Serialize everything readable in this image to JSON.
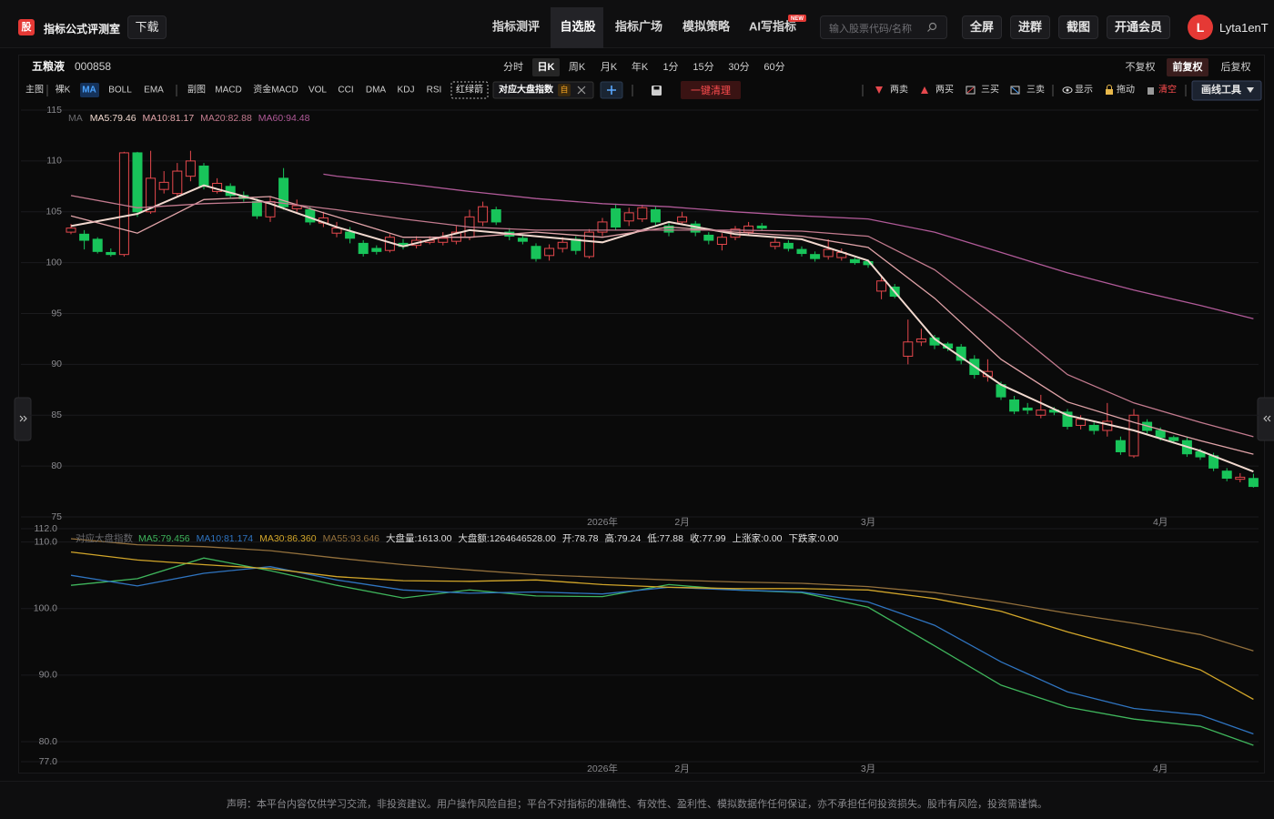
{
  "header": {
    "logo": "股",
    "title": "指标公式评测室",
    "download": "下载",
    "nav": [
      "指标测评",
      "自选股",
      "指标广场",
      "模拟策略",
      "AI写指标"
    ],
    "badge": "NEW",
    "search_placeholder": "输入股票代码/名称",
    "buttons": [
      "全屏",
      "进群",
      "截图",
      "开通会员"
    ],
    "avatar": "L",
    "user": "Lyta1enT"
  },
  "toolbar": {
    "stock_name": "五粮液",
    "stock_code": "000858",
    "periods": [
      "分时",
      "日K",
      "周K",
      "月K",
      "年K",
      "1分",
      "15分",
      "30分",
      "60分"
    ],
    "adjust": [
      "不复权",
      "前复权",
      "后复权"
    ],
    "main_label": "主图",
    "main_items": [
      "裸K",
      "MA",
      "BOLL",
      "EMA"
    ],
    "sub_label": "副图",
    "sub_items": [
      "MACD",
      "资金MACD",
      "VOL",
      "CCI",
      "DMA",
      "KDJ",
      "RSI"
    ],
    "arrow_tag": "红绿箭",
    "index_tag": "对应大盘指数",
    "index_tag_badge": "自",
    "clear_all": "一键清理",
    "signals": [
      "两卖",
      "两买",
      "三买",
      "三卖"
    ],
    "view": [
      "显示",
      "拖动",
      "清空"
    ],
    "draw_tools": "画线工具"
  },
  "chart_data": [
    {
      "type": "candlestick",
      "legend_title": "MA",
      "categories": [
        null,
        null,
        null,
        null,
        null,
        null,
        null,
        null,
        null,
        null,
        null,
        null,
        null,
        null,
        null,
        null,
        null,
        null,
        null,
        null,
        null,
        null,
        null,
        null,
        null,
        null,
        null,
        null,
        null,
        null,
        null,
        null,
        null,
        null,
        null,
        null,
        null,
        null,
        null,
        null,
        "2026年",
        null,
        null,
        null,
        null,
        null,
        "2月",
        null,
        null,
        null,
        null,
        null,
        null,
        null,
        null,
        null,
        null,
        null,
        null,
        null,
        "3月",
        null,
        null,
        null,
        null,
        null,
        null,
        null,
        null,
        null,
        null,
        null,
        null,
        null,
        null,
        null,
        null,
        null,
        null,
        null,
        null,
        null,
        "4月",
        null,
        null,
        null,
        null,
        null,
        null,
        null
      ],
      "open": [
        103.0,
        102.8,
        102.3,
        101.0,
        100.8,
        110.8,
        105.0,
        107.2,
        106.8,
        108.5,
        109.5,
        107.0,
        107.5,
        106.6,
        106.0,
        104.5,
        108.3,
        105.3,
        105.2,
        103.9,
        102.9,
        103.0,
        101.9,
        101.4,
        101.2,
        101.9,
        101.7,
        102.0,
        102.0,
        102.1,
        102.5,
        104.0,
        105.2,
        103.0,
        102.4,
        101.6,
        100.7,
        101.4,
        102.3,
        100.6,
        103.0,
        105.3,
        104.1,
        104.3,
        105.2,
        103.6,
        104.0,
        103.8,
        102.7,
        101.8,
        102.5,
        103.0,
        103.6,
        101.6,
        101.9,
        101.3,
        100.8,
        100.6,
        100.5,
        100.3,
        100.1,
        97.2,
        97.6,
        90.8,
        92.2,
        92.6,
        92.0,
        91.7,
        90.5,
        88.8,
        88.0,
        86.5,
        85.7,
        85.0,
        85.5,
        85.3,
        84.0,
        84.0,
        83.5,
        82.5,
        81.0,
        84.3,
        83.5,
        82.8,
        82.5,
        81.4,
        81.0,
        79.5,
        78.7,
        78.78
      ],
      "high": [
        103.8,
        103.2,
        102.5,
        101.4,
        110.9,
        110.9,
        111.0,
        109.0,
        109.8,
        111.0,
        109.8,
        108.3,
        107.8,
        107.0,
        106.3,
        106.5,
        109.3,
        106.2,
        105.5,
        105.0,
        104.0,
        103.5,
        102.2,
        101.7,
        102.8,
        102.3,
        102.6,
        102.6,
        103.0,
        103.6,
        105.2,
        106.0,
        105.5,
        103.4,
        102.8,
        101.9,
        101.8,
        102.5,
        102.6,
        103.3,
        104.4,
        105.8,
        105.4,
        105.7,
        105.5,
        103.9,
        105.0,
        104.1,
        103.0,
        102.9,
        103.6,
        104.0,
        103.9,
        102.5,
        102.2,
        101.6,
        101.1,
        102.3,
        101.4,
        100.5,
        100.3,
        98.6,
        97.9,
        94.4,
        93.5,
        92.9,
        92.2,
        92.0,
        90.9,
        90.5,
        88.3,
        86.9,
        86.2,
        87.0,
        85.8,
        85.6,
        85.0,
        84.3,
        86.2,
        82.9,
        85.6,
        84.6,
        83.8,
        83.0,
        82.8,
        81.7,
        81.3,
        79.8,
        79.3,
        79.24
      ],
      "low": [
        102.8,
        101.3,
        100.9,
        100.6,
        100.6,
        104.5,
        104.8,
        106.8,
        106.5,
        108.0,
        107.2,
        106.8,
        106.3,
        106.0,
        104.3,
        104.0,
        105.2,
        105.0,
        103.7,
        103.5,
        102.5,
        101.9,
        100.6,
        100.8,
        101.0,
        101.3,
        101.4,
        101.8,
        101.7,
        101.8,
        102.2,
        103.6,
        103.7,
        102.2,
        101.8,
        100.1,
        100.2,
        101.0,
        100.8,
        100.4,
        102.6,
        103.2,
        103.6,
        104.0,
        103.6,
        102.6,
        103.7,
        102.6,
        101.8,
        101.2,
        102.2,
        102.7,
        103.1,
        101.3,
        101.1,
        100.6,
        100.1,
        100.3,
        100.2,
        99.8,
        99.5,
        96.4,
        96.5,
        90.0,
        91.8,
        91.5,
        91.3,
        90.0,
        88.6,
        88.3,
        86.5,
        85.1,
        85.1,
        84.7,
        85.0,
        83.6,
        83.6,
        83.1,
        82.9,
        81.1,
        80.8,
        83.2,
        82.5,
        82.2,
        80.9,
        80.6,
        79.5,
        78.5,
        78.4,
        77.88
      ],
      "close": [
        103.4,
        102.2,
        101.1,
        100.8,
        110.8,
        105.0,
        108.3,
        107.9,
        109.0,
        110.0,
        107.5,
        107.8,
        106.6,
        106.3,
        104.6,
        106.0,
        105.5,
        105.6,
        104.0,
        104.4,
        103.4,
        102.4,
        100.9,
        101.1,
        102.5,
        101.6,
        102.2,
        102.2,
        102.4,
        103.0,
        104.5,
        105.5,
        104.0,
        102.6,
        102.1,
        100.4,
        101.4,
        102.0,
        101.2,
        103.0,
        104.0,
        103.5,
        104.9,
        105.4,
        104.0,
        103.0,
        104.5,
        103.0,
        102.2,
        102.5,
        103.3,
        103.6,
        103.4,
        102.0,
        101.4,
        100.9,
        100.4,
        101.3,
        101.0,
        100.0,
        99.8,
        98.2,
        96.7,
        92.2,
        92.5,
        91.9,
        91.6,
        90.4,
        89.0,
        89.3,
        86.8,
        85.4,
        85.5,
        85.5,
        85.3,
        83.9,
        84.6,
        83.5,
        84.4,
        81.4,
        85.0,
        83.5,
        82.8,
        82.5,
        81.2,
        80.9,
        79.8,
        78.8,
        78.9,
        77.99
      ],
      "up_color": "#e5484d",
      "down_color": "#18c45a",
      "ylim": [
        75,
        115
      ],
      "yticks": [
        75,
        80,
        85,
        90,
        95,
        100,
        105,
        110,
        115
      ],
      "grid": true,
      "series": [
        {
          "label": "MA5:79.46",
          "color": "#f2d9cf",
          "x": [
            0,
            5,
            10,
            15,
            20,
            25,
            30,
            35,
            40,
            45,
            50,
            55,
            60,
            65,
            70,
            75,
            80,
            85,
            89
          ],
          "values": [
            103.6,
            104.8,
            107.6,
            105.8,
            103.5,
            101.6,
            103.2,
            102.6,
            102.0,
            104.0,
            102.8,
            102.3,
            100.2,
            92.5,
            88.0,
            85.0,
            83.5,
            81.5,
            79.46
          ]
        },
        {
          "label": "MA10:81.17",
          "color": "#e0a3a8",
          "x": [
            0,
            5,
            10,
            15,
            20,
            25,
            30,
            35,
            40,
            45,
            50,
            55,
            60,
            65,
            70,
            75,
            80,
            85,
            89
          ],
          "values": [
            104.6,
            102.9,
            106.2,
            106.5,
            104.5,
            102.5,
            102.5,
            103.0,
            102.5,
            103.5,
            103.0,
            102.6,
            101.5,
            96.5,
            90.5,
            86.3,
            84.3,
            82.5,
            81.17
          ]
        },
        {
          "label": "MA20:82.88",
          "color": "#c27a8e",
          "x": [
            0,
            5,
            10,
            15,
            20,
            25,
            30,
            35,
            40,
            45,
            50,
            55,
            60,
            65,
            70,
            75,
            80,
            85,
            89
          ],
          "values": [
            106.6,
            105.4,
            105.8,
            106.0,
            105.2,
            104.3,
            103.5,
            103.2,
            103.2,
            103.2,
            103.2,
            103.1,
            102.6,
            99.3,
            94.3,
            89.0,
            86.2,
            84.3,
            82.88
          ]
        },
        {
          "label": "MA60:94.48",
          "color": "#b05a98",
          "x": [
            19,
            20,
            25,
            30,
            35,
            40,
            45,
            50,
            55,
            60,
            65,
            70,
            75,
            80,
            85,
            89
          ],
          "values": [
            108.7,
            108.5,
            107.8,
            107.0,
            106.3,
            105.8,
            105.5,
            105.0,
            104.6,
            104.3,
            103.0,
            101.0,
            99.0,
            97.3,
            95.8,
            94.48
          ]
        }
      ]
    },
    {
      "type": "line",
      "title": "对应大盘指数",
      "ylim": [
        77,
        112
      ],
      "yticks": [
        {
          "value": 77,
          "label": "77.0"
        },
        {
          "value": 80,
          "label": "80.0"
        },
        {
          "value": 90,
          "label": "90.0"
        },
        {
          "value": 100,
          "label": "100.0"
        },
        {
          "value": 110,
          "label": "110.0"
        },
        {
          "value": 112,
          "label": "112.0"
        }
      ],
      "grid": true,
      "series": [
        {
          "label": "MA5:79.456",
          "color": "#3fb55c",
          "x": [
            0,
            5,
            10,
            15,
            20,
            25,
            30,
            35,
            40,
            45,
            50,
            55,
            60,
            65,
            70,
            75,
            80,
            85,
            89
          ],
          "values": [
            103.5,
            104.5,
            107.6,
            105.7,
            103.5,
            101.6,
            102.8,
            101.9,
            101.8,
            103.6,
            102.8,
            102.4,
            100.2,
            94.4,
            88.5,
            85.2,
            83.4,
            82.3,
            79.456
          ]
        },
        {
          "label": "MA10:81.174",
          "color": "#2f74c0",
          "x": [
            0,
            5,
            10,
            15,
            20,
            25,
            30,
            35,
            40,
            45,
            50,
            55,
            60,
            65,
            70,
            75,
            80,
            85,
            89
          ],
          "values": [
            105.0,
            103.4,
            105.3,
            106.3,
            104.3,
            102.8,
            102.3,
            102.5,
            102.2,
            103.2,
            102.8,
            102.5,
            101.0,
            97.5,
            92.0,
            87.5,
            85.0,
            84.0,
            81.174
          ]
        },
        {
          "label": "MA30:86.360",
          "color": "#d2a62a",
          "x": [
            0,
            5,
            10,
            15,
            20,
            25,
            30,
            35,
            40,
            45,
            50,
            55,
            60,
            65,
            70,
            75,
            80,
            85,
            89
          ],
          "values": [
            108.5,
            107.3,
            106.6,
            106.0,
            104.8,
            104.2,
            104.1,
            104.3,
            103.6,
            103.2,
            103.0,
            103.0,
            102.8,
            101.5,
            99.6,
            96.5,
            93.8,
            90.8,
            86.36
          ]
        },
        {
          "label": "MA55:93.646",
          "color": "#93703c",
          "x": [
            0,
            5,
            10,
            15,
            20,
            25,
            30,
            35,
            40,
            45,
            50,
            55,
            60,
            65,
            70,
            75,
            80,
            85,
            89
          ],
          "values": [
            110.5,
            109.6,
            109.3,
            108.7,
            107.6,
            106.6,
            105.8,
            105.1,
            104.7,
            104.3,
            104.0,
            103.8,
            103.3,
            102.4,
            101.0,
            99.3,
            97.8,
            96.1,
            93.646
          ]
        }
      ],
      "stats": [
        "大盘量:1613.00",
        "大盘额:1264646528.00",
        "开:78.78",
        "高:79.24",
        "低:77.88",
        "收:77.99",
        "上涨家:0.00",
        "下跌家:0.00"
      ]
    }
  ],
  "footer": "声明：本平台内容仅供学习交流，非投资建议。用户操作风险自担；平台不对指标的准确性、有效性、盈利性、模拟数据作任何保证，亦不承担任何投资损失。股市有风险，投资需谨慎。"
}
